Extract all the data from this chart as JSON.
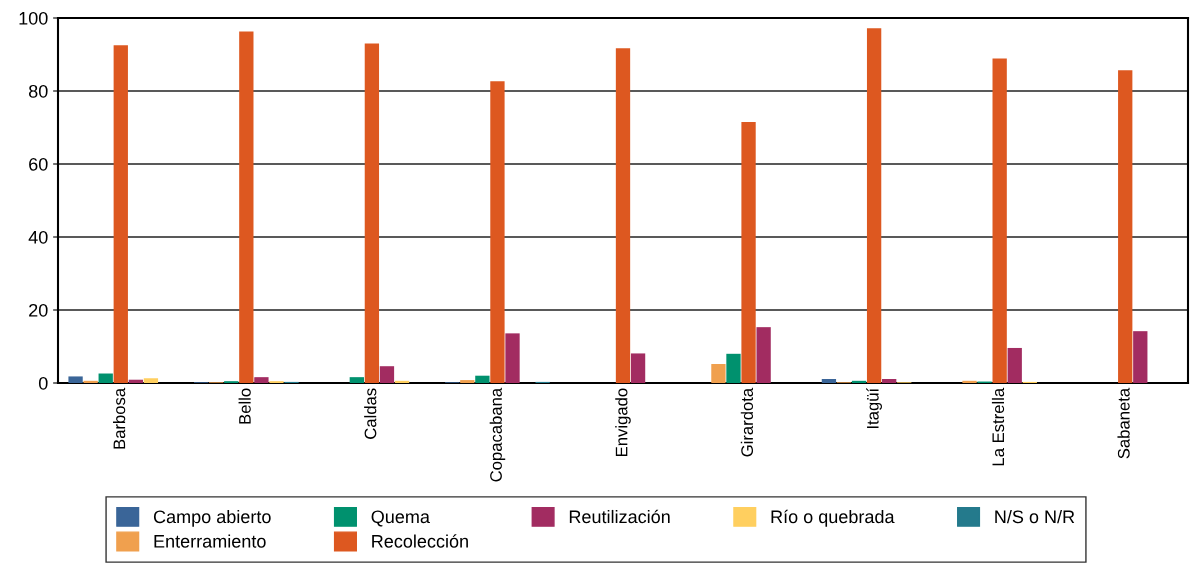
{
  "chart_data": {
    "type": "bar",
    "categories": [
      "Barbosa",
      "Bello",
      "Caldas",
      "Copacabana",
      "Envigado",
      "Girardota",
      "Itagüí",
      "La Estrella",
      "Sabaneta"
    ],
    "series": [
      {
        "name": "Campo abierto",
        "color": "#3a6598",
        "values": [
          1.8,
          0.2,
          0,
          0.2,
          0,
          0,
          1.1,
          0,
          0
        ]
      },
      {
        "name": "Enterramiento",
        "color": "#f0a04e",
        "values": [
          0.6,
          0.2,
          0,
          0.8,
          0,
          5.2,
          0.2,
          0.6,
          0
        ]
      },
      {
        "name": "Quema",
        "color": "#00916e",
        "values": [
          2.6,
          0.5,
          1.6,
          2.0,
          0,
          8.0,
          0.6,
          0.4,
          0
        ]
      },
      {
        "name": "Recolección",
        "color": "#dd5820",
        "values": [
          92.5,
          96.3,
          93.0,
          82.7,
          91.7,
          71.5,
          97.2,
          88.9,
          85.7
        ]
      },
      {
        "name": "Reutilización",
        "color": "#a22c61",
        "values": [
          0.9,
          1.6,
          4.6,
          13.6,
          8.1,
          15.3,
          1.1,
          9.6,
          14.2
        ]
      },
      {
        "name": "Río o quebrada",
        "color": "#ffcf5f",
        "values": [
          1.3,
          0.5,
          0.6,
          0,
          0,
          0,
          0.2,
          0.3,
          0
        ]
      },
      {
        "name": "N/S o N/R",
        "color": "#247a8c",
        "values": [
          0,
          0.3,
          0,
          0.3,
          0,
          0,
          0,
          0,
          0
        ]
      }
    ],
    "ylim": [
      0,
      100
    ],
    "yticks": [
      0,
      20,
      40,
      60,
      80,
      100
    ],
    "grid": "y",
    "legend": "bottom"
  }
}
